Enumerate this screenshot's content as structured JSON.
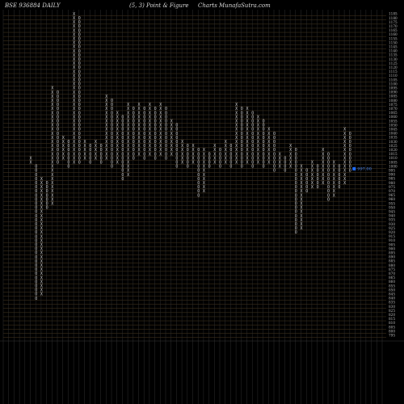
{
  "header": {
    "left": "BSE 936884  DAILY",
    "middle": "(5, 3) Point & Figure",
    "right": "Charts MunafaSutra.com"
  },
  "colors": {
    "background": "#000000",
    "marks": "#cfcfcf",
    "last_price": "#1e6cff"
  },
  "chart_data": {
    "type": "point-and-figure",
    "box_size": 5,
    "reversal": 3,
    "ylim": [
      790,
      1190
    ],
    "y_ticks": [
      1185,
      1180,
      1175,
      1170,
      1165,
      1160,
      1155,
      1150,
      1145,
      1140,
      1135,
      1130,
      1125,
      1120,
      1115,
      1110,
      1105,
      1100,
      1095,
      1090,
      1085,
      1080,
      1075,
      1070,
      1065,
      1060,
      1055,
      1050,
      1045,
      1040,
      1035,
      1030,
      1025,
      1020,
      1015,
      1010,
      1005,
      1000,
      995,
      990,
      985,
      980,
      975,
      970,
      965,
      960,
      955,
      950,
      945,
      940,
      935,
      930,
      925,
      920,
      915,
      910,
      905,
      900,
      895,
      890,
      885,
      880,
      875,
      870,
      865,
      860,
      855,
      850,
      845,
      840,
      835,
      830,
      825,
      820,
      815,
      810,
      805,
      800,
      795
    ],
    "last_price": "997.00",
    "last_price_value": 997,
    "columns": [
      {
        "t": "X",
        "lo": 1005,
        "hi": 1010
      },
      {
        "t": "O",
        "lo": 840,
        "hi": 1000
      },
      {
        "t": "X",
        "lo": 845,
        "hi": 985
      },
      {
        "t": "O",
        "lo": 950,
        "hi": 980
      },
      {
        "t": "X",
        "lo": 955,
        "hi": 1095
      },
      {
        "t": "O",
        "lo": 1005,
        "hi": 1090
      },
      {
        "t": "X",
        "lo": 1010,
        "hi": 1035
      },
      {
        "t": "O",
        "lo": 1000,
        "hi": 1030
      },
      {
        "t": "X",
        "lo": 1005,
        "hi": 1185
      },
      {
        "t": "O",
        "lo": 1005,
        "hi": 1180
      },
      {
        "t": "X",
        "lo": 1010,
        "hi": 1030
      },
      {
        "t": "O",
        "lo": 1005,
        "hi": 1025
      },
      {
        "t": "X",
        "lo": 1010,
        "hi": 1030
      },
      {
        "t": "O",
        "lo": 1005,
        "hi": 1025
      },
      {
        "t": "X",
        "lo": 1010,
        "hi": 1085
      },
      {
        "t": "O",
        "lo": 1000,
        "hi": 1080
      },
      {
        "t": "X",
        "lo": 1005,
        "hi": 1065
      },
      {
        "t": "O",
        "lo": 985,
        "hi": 1060
      },
      {
        "t": "X",
        "lo": 990,
        "hi": 1075
      },
      {
        "t": "O",
        "lo": 1010,
        "hi": 1070
      },
      {
        "t": "X",
        "lo": 1015,
        "hi": 1075
      },
      {
        "t": "O",
        "lo": 1010,
        "hi": 1070
      },
      {
        "t": "X",
        "lo": 1015,
        "hi": 1075
      },
      {
        "t": "O",
        "lo": 1010,
        "hi": 1070
      },
      {
        "t": "X",
        "lo": 1015,
        "hi": 1075
      },
      {
        "t": "O",
        "lo": 1010,
        "hi": 1070
      },
      {
        "t": "X",
        "lo": 1015,
        "hi": 1055
      },
      {
        "t": "O",
        "lo": 1000,
        "hi": 1050
      },
      {
        "t": "X",
        "lo": 1005,
        "hi": 1030
      },
      {
        "t": "O",
        "lo": 1000,
        "hi": 1025
      },
      {
        "t": "X",
        "lo": 1005,
        "hi": 1025
      },
      {
        "t": "O",
        "lo": 965,
        "hi": 1020
      },
      {
        "t": "X",
        "lo": 970,
        "hi": 1020
      },
      {
        "t": "O",
        "lo": 1000,
        "hi": 1015
      },
      {
        "t": "X",
        "lo": 1005,
        "hi": 1025
      },
      {
        "t": "O",
        "lo": 1000,
        "hi": 1020
      },
      {
        "t": "X",
        "lo": 1005,
        "hi": 1030
      },
      {
        "t": "O",
        "lo": 1000,
        "hi": 1025
      },
      {
        "t": "X",
        "lo": 1005,
        "hi": 1075
      },
      {
        "t": "O",
        "lo": 1000,
        "hi": 1070
      },
      {
        "t": "X",
        "lo": 1005,
        "hi": 1070
      },
      {
        "t": "O",
        "lo": 1000,
        "hi": 1065
      },
      {
        "t": "X",
        "lo": 1005,
        "hi": 1060
      },
      {
        "t": "O",
        "lo": 1000,
        "hi": 1055
      },
      {
        "t": "X",
        "lo": 1005,
        "hi": 1045
      },
      {
        "t": "O",
        "lo": 995,
        "hi": 1040
      },
      {
        "t": "X",
        "lo": 1000,
        "hi": 1015
      },
      {
        "t": "O",
        "lo": 995,
        "hi": 1010
      },
      {
        "t": "X",
        "lo": 1000,
        "hi": 1025
      },
      {
        "t": "O",
        "lo": 920,
        "hi": 1020
      },
      {
        "t": "X",
        "lo": 925,
        "hi": 1000
      },
      {
        "t": "O",
        "lo": 970,
        "hi": 995
      },
      {
        "t": "X",
        "lo": 975,
        "hi": 1005
      },
      {
        "t": "O",
        "lo": 975,
        "hi": 1000
      },
      {
        "t": "X",
        "lo": 980,
        "hi": 1020
      },
      {
        "t": "O",
        "lo": 960,
        "hi": 1015
      },
      {
        "t": "X",
        "lo": 965,
        "hi": 1005
      },
      {
        "t": "O",
        "lo": 975,
        "hi": 1000
      },
      {
        "t": "X",
        "lo": 980,
        "hi": 1045
      },
      {
        "t": "O",
        "lo": 995,
        "hi": 1040
      }
    ]
  }
}
